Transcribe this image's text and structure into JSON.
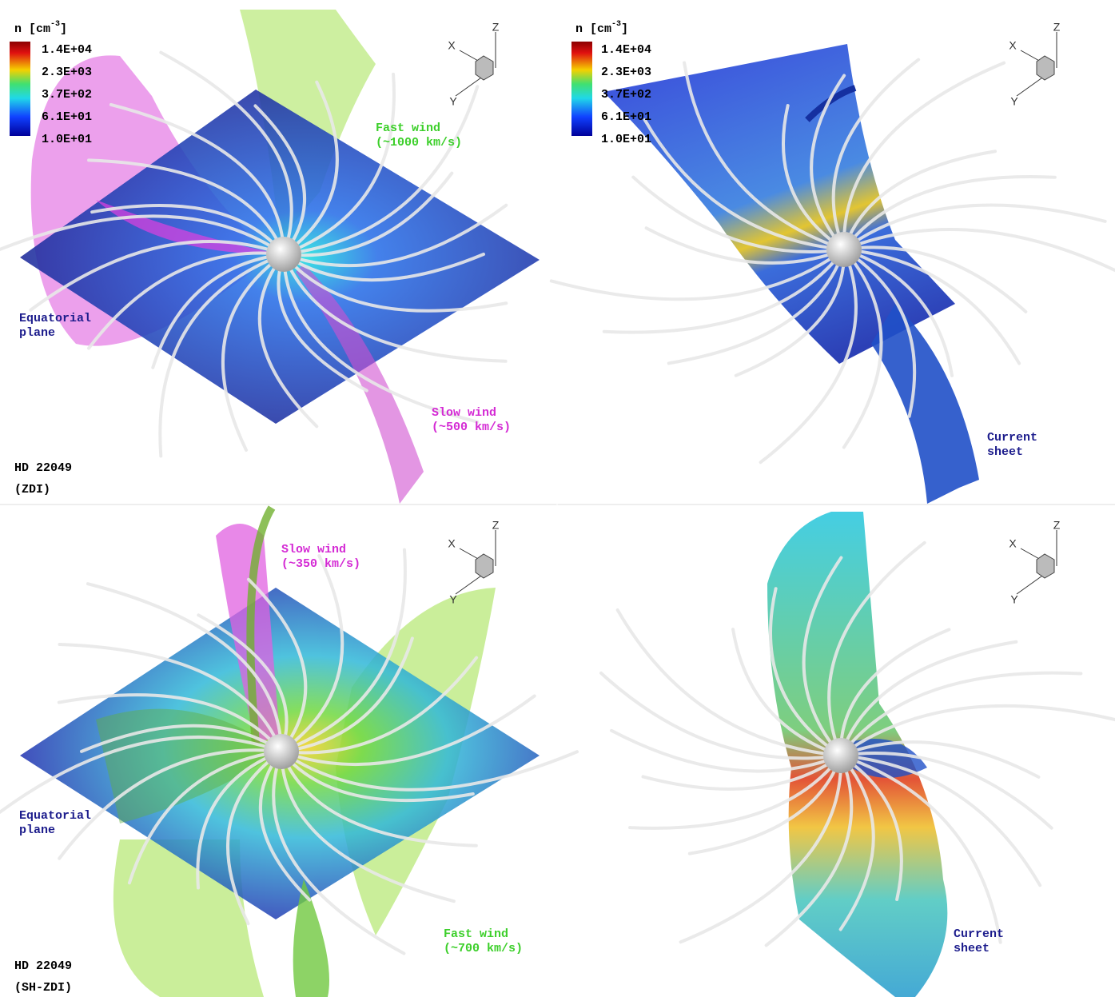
{
  "panels": [
    {
      "star_label": [
        "HD 22049",
        "(ZDI)"
      ],
      "colorbar": {
        "title": "n [cm",
        "title_exponent": "-3",
        "title_close": "]",
        "labels": [
          "1.4E+04",
          "2.3E+03",
          "3.7E+02",
          "6.1E+01",
          "1.0E+01"
        ]
      },
      "axes": {
        "x": "X",
        "y": "Y",
        "z": "Z"
      },
      "annotations": [
        {
          "lines": [
            "Fast wind",
            "(~1000 km/s)"
          ],
          "color": "#3ccf2a"
        },
        {
          "lines": [
            "Equatorial",
            "plane"
          ],
          "color": "#1c1c8c"
        },
        {
          "lines": [
            "Slow wind",
            "(~500 km/s)"
          ],
          "color": "#d42ad4"
        }
      ]
    },
    {
      "colorbar": {
        "title": "n [cm",
        "title_exponent": "-3",
        "title_close": "]",
        "labels": [
          "1.4E+04",
          "2.3E+03",
          "3.7E+02",
          "6.1E+01",
          "1.0E+01"
        ]
      },
      "axes": {
        "x": "X",
        "y": "Y",
        "z": "Z"
      },
      "annotations": [
        {
          "lines": [
            "Current",
            "sheet"
          ],
          "color": "#1c1c8c"
        }
      ]
    },
    {
      "star_label": [
        "HD 22049",
        "(SH-ZDI)"
      ],
      "axes": {
        "x": "X",
        "y": "Y",
        "z": "Z"
      },
      "annotations": [
        {
          "lines": [
            "Slow wind",
            "(~350 km/s)"
          ],
          "color": "#d42ad4"
        },
        {
          "lines": [
            "Equatorial",
            "plane"
          ],
          "color": "#1c1c8c"
        },
        {
          "lines": [
            "Fast wind",
            "(~700 km/s)"
          ],
          "color": "#3ccf2a"
        }
      ]
    },
    {
      "axes": {
        "x": "X",
        "y": "Y",
        "z": "Z"
      },
      "annotations": [
        {
          "lines": [
            "Current",
            "sheet"
          ],
          "color": "#1c1c8c"
        }
      ]
    }
  ]
}
